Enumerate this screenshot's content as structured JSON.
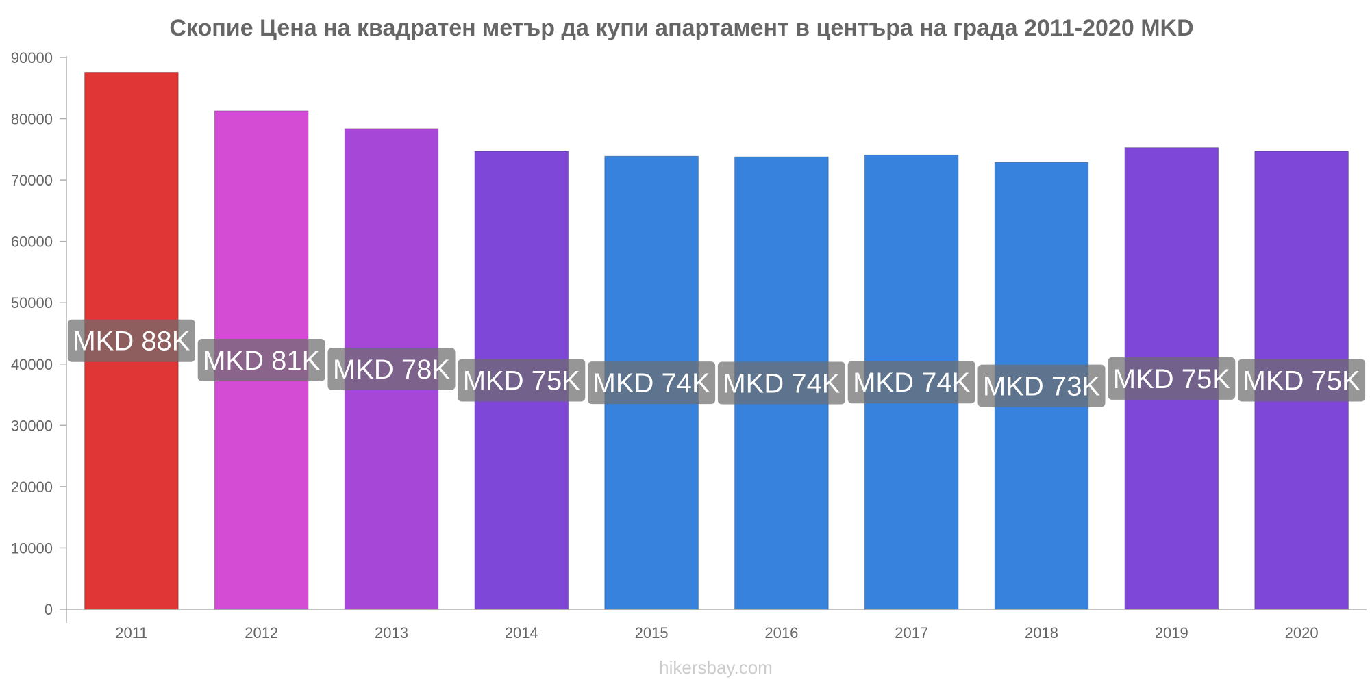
{
  "chart_data": {
    "type": "bar",
    "title": "Скопие Цена на квадратен метър да купи апартамент в центъра на града 2011-2020 MKD",
    "xlabel": "",
    "ylabel": "",
    "ylim": [
      0,
      90000
    ],
    "yticks": [
      "0",
      "10000",
      "20000",
      "30000",
      "40000",
      "50000",
      "60000",
      "70000",
      "80000",
      "90000"
    ],
    "ytick_values": [
      0,
      10000,
      20000,
      30000,
      40000,
      50000,
      60000,
      70000,
      80000,
      90000
    ],
    "categories": [
      "2011",
      "2012",
      "2013",
      "2014",
      "2015",
      "2016",
      "2017",
      "2018",
      "2019",
      "2020"
    ],
    "values": [
      87600,
      81300,
      78400,
      74700,
      73900,
      73800,
      74100,
      72900,
      75300,
      74700
    ],
    "data_labels": [
      "MKD 88K",
      "MKD 81K",
      "MKD 78K",
      "MKD 75K",
      "MKD 74K",
      "MKD 74K",
      "MKD 74K",
      "MKD 73K",
      "MKD 75K",
      "MKD 75K"
    ],
    "colors": [
      "#e03636",
      "#d44bd4",
      "#a647d8",
      "#7e47d8",
      "#3682dd",
      "#3682dd",
      "#3682dd",
      "#3682dd",
      "#7e47d8",
      "#7e47d8"
    ],
    "label_box_color": "#6e6e6e",
    "grid": false,
    "legend": "none"
  },
  "watermark": "hikersbay.com"
}
